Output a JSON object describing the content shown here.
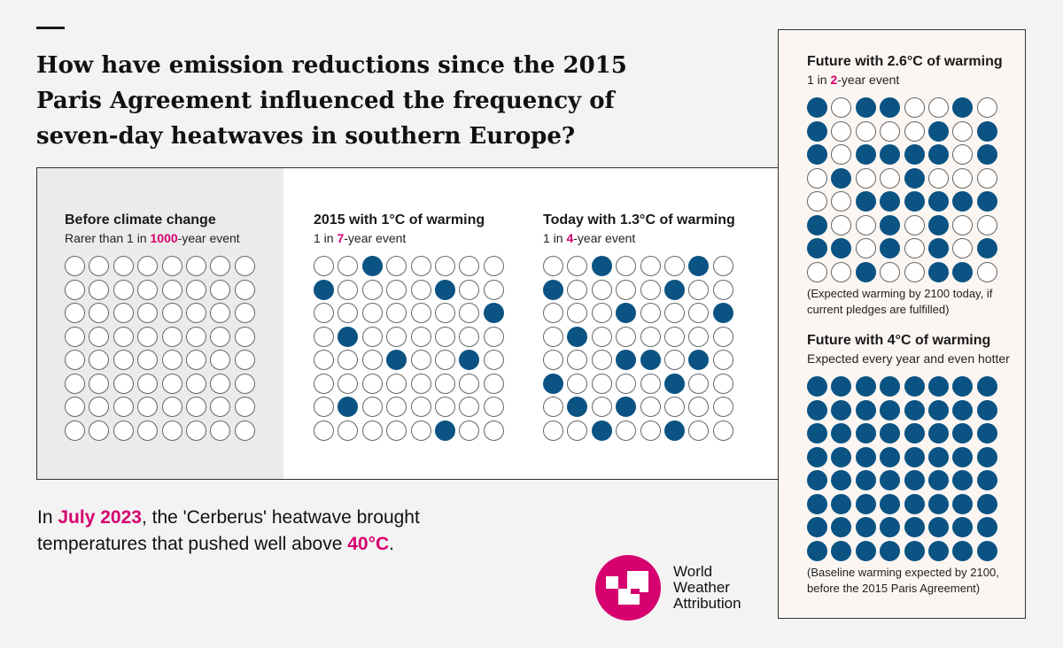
{
  "title": "How have emission reductions since the 2015 Paris Agreement influenced the frequency of seven-day heatwaves in southern Europe?",
  "colors": {
    "filled": "#0b5383",
    "accent": "#d6006f"
  },
  "scenarios": [
    {
      "heading": "Before climate change",
      "sub_pre": "Rarer than 1 in ",
      "sub_num": "1000",
      "sub_post": "-year event",
      "note": "",
      "rows": [
        "00000000",
        "00000000",
        "00000000",
        "00000000",
        "00000000",
        "00000000",
        "00000000",
        "00000000"
      ]
    },
    {
      "heading": "2015 with 1°C of warming",
      "sub_pre": "1 in ",
      "sub_num": "7",
      "sub_post": "-year event",
      "note": "",
      "rows": [
        "00100000",
        "10000100",
        "00000001",
        "01000000",
        "00010010",
        "00000000",
        "01000000",
        "00000100"
      ]
    },
    {
      "heading": "Today with 1.3°C of warming",
      "sub_pre": "1 in ",
      "sub_num": "4",
      "sub_post": "-year event",
      "note": "",
      "rows": [
        "00100010",
        "10000100",
        "00010001",
        "01000000",
        "00011010",
        "10000100",
        "01010000",
        "00100100"
      ]
    },
    {
      "heading": "Future with 2.6°C of warming",
      "sub_pre": "1 in ",
      "sub_num": "2",
      "sub_post": "-year event",
      "note": "(Expected warming by 2100 today, if current pledges are fulfilled)",
      "rows": [
        "10110010",
        "10000101",
        "10111101",
        "01001000",
        "00111111",
        "10010100",
        "11010101",
        "00100110"
      ]
    },
    {
      "heading": "Future with 4°C of warming",
      "sub_pre": "Expected every year and even hotter",
      "sub_num": "",
      "sub_post": "",
      "note": "(Baseline warming expected by 2100, before the 2015 Paris Agreement)",
      "rows": [
        "11111111",
        "11111111",
        "11111111",
        "11111111",
        "11111111",
        "11111111",
        "11111111",
        "11111111"
      ]
    }
  ],
  "footer": {
    "p1": "In ",
    "h1": "July 2023",
    "p2": ", the 'Cerberus' heatwave brought temperatures that pushed well above ",
    "h2": "40°C",
    "p3": "."
  },
  "logo": {
    "line1": "World",
    "line2": "Weather",
    "line3": "Attribution"
  }
}
